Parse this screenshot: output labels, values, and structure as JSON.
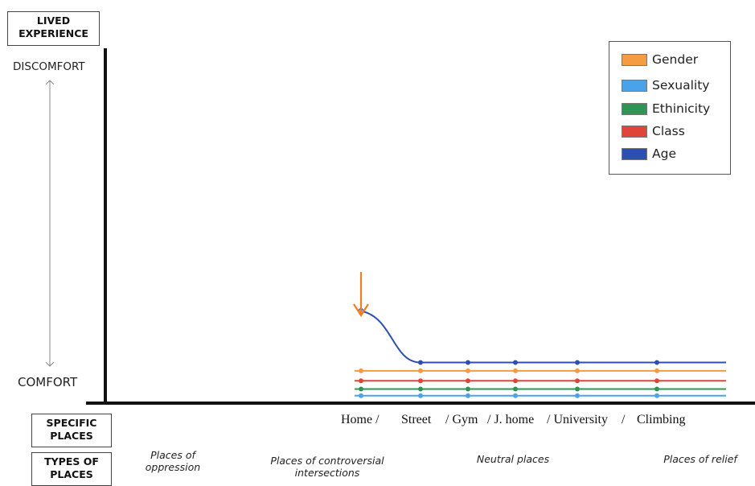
{
  "labels": {
    "y_axis_box": "LIVED\nEXPERIENCE",
    "y_top": "DISCOMFORT",
    "y_bottom": "COMFORT",
    "places_box": "SPECIFIC\nPLACES",
    "types_box": "TYPES OF\nPLACES"
  },
  "place_labels": [
    "Home /",
    "Street",
    "/ Gym",
    "/ J. home",
    "/ University",
    "/",
    "Climbing"
  ],
  "place_types": [
    "Places of\noppression",
    "Places of controversial\nintersections",
    "Neutral places",
    "Places of relief"
  ],
  "colors": {
    "gender": "#f59b42",
    "sexuality": "#4aa3e8",
    "ethinicity": "#2f9455",
    "class": "#e0453a",
    "age": "#2d4fb0",
    "arrow": "#f07e24",
    "axis": "#111111"
  },
  "chart_data": {
    "type": "line",
    "xlabel": "SPECIFIC PLACES",
    "ylabel": "LIVED EXPERIENCE",
    "categories": [
      "Home",
      "Street",
      "Gym",
      "J. home",
      "University",
      "Climbing"
    ],
    "ylim": [
      0,
      10
    ],
    "y_scale_labels": {
      "min": "COMFORT",
      "max": "DISCOMFORT"
    },
    "grid": false,
    "legend_position": "top-right",
    "annotation": "orange arrow pointing at Home",
    "series": [
      {
        "name": "Gender",
        "color_key": "gender",
        "values": [
          0.9,
          0.9,
          0.9,
          0.9,
          0.9,
          0.9
        ]
      },
      {
        "name": "Sexuality",
        "color_key": "sexuality",
        "values": [
          0.15,
          0.15,
          0.15,
          0.15,
          0.15,
          0.15
        ]
      },
      {
        "name": "Ethinicity",
        "color_key": "ethinicity",
        "values": [
          0.35,
          0.35,
          0.35,
          0.35,
          0.35,
          0.35
        ]
      },
      {
        "name": "Class",
        "color_key": "class",
        "values": [
          0.6,
          0.6,
          0.6,
          0.6,
          0.6,
          0.6
        ]
      },
      {
        "name": "Age",
        "color_key": "age",
        "values": [
          2.7,
          1.15,
          1.15,
          1.15,
          1.15,
          1.15
        ]
      }
    ]
  }
}
